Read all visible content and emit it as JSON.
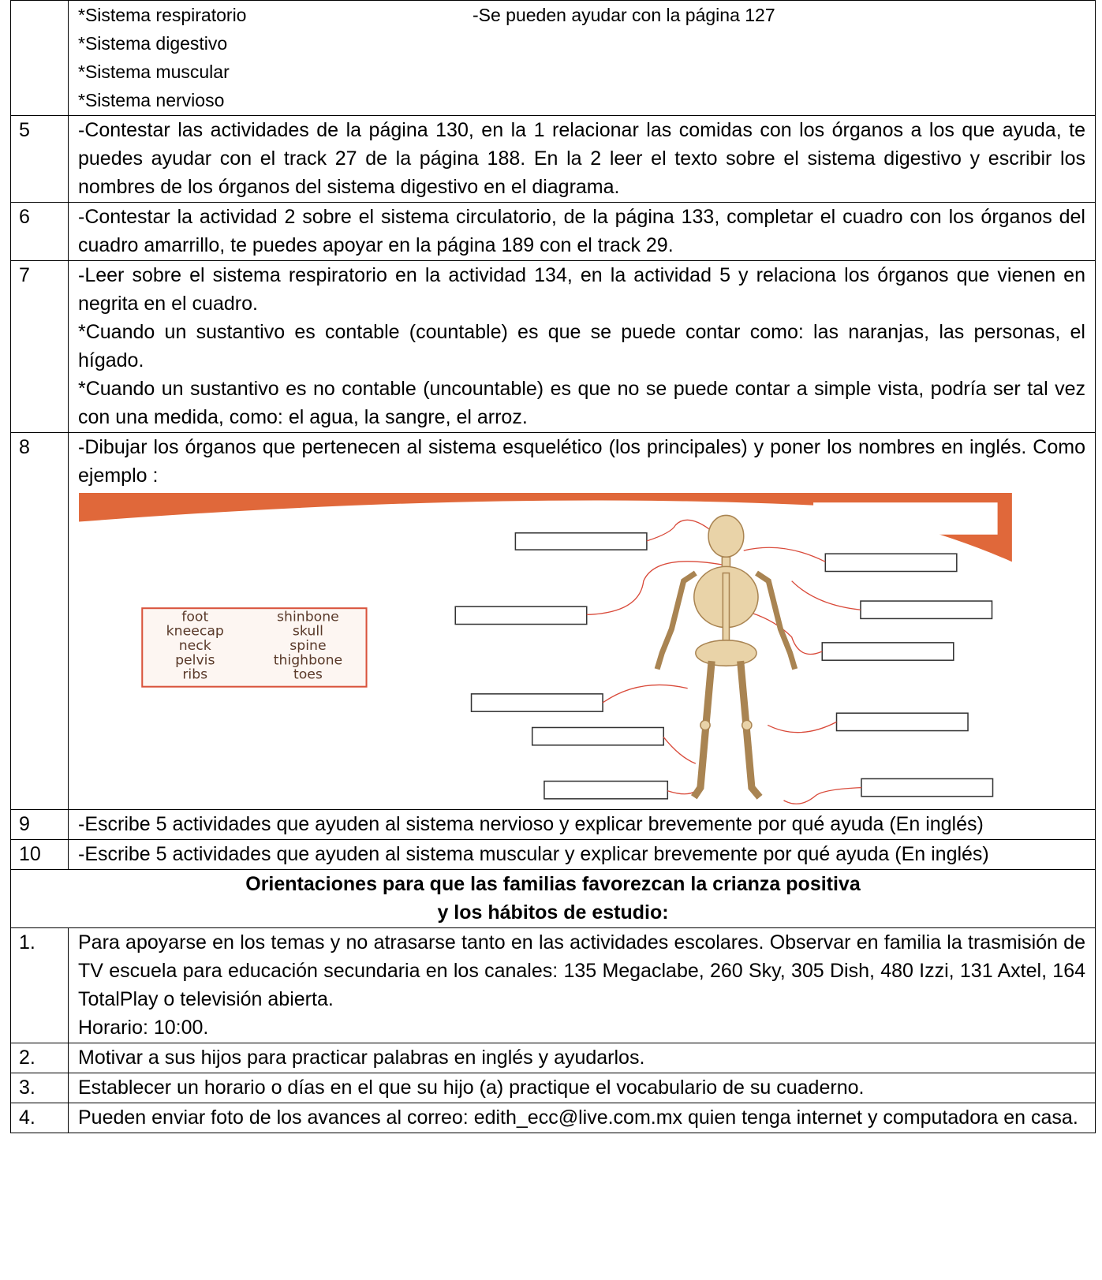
{
  "intro_row": {
    "items": [
      "*Sistema respiratorio",
      "*Sistema digestivo",
      "*Sistema muscular",
      "*Sistema nervioso"
    ],
    "note": "-Se pueden ayudar con la página 127"
  },
  "rows": [
    {
      "number": "5",
      "paragraphs": [
        "-Contestar las actividades de la página 130, en la 1 relacionar las comidas con los órganos a los que ayuda, te puedes ayudar con el track 27 de la página 188. En la 2 leer el texto sobre el sistema digestivo y escribir los nombres de los órganos del sistema digestivo en el diagrama."
      ]
    },
    {
      "number": "6",
      "paragraphs": [
        "-Contestar la actividad 2 sobre el sistema circulatorio, de la página 133, completar el cuadro con los órganos del cuadro amarrillo, te puedes apoyar en la página 189 con el track 29."
      ]
    },
    {
      "number": "7",
      "paragraphs": [
        "-Leer sobre el sistema respiratorio en la actividad 134, en la actividad 5 y relaciona los órganos que vienen en negrita en el cuadro.",
        "*Cuando un sustantivo es contable (countable) es que se puede contar como: las naranjas, las personas, el hígado.",
        "*Cuando un sustantivo es no contable (uncountable) es que no se puede contar a simple vista, podría ser tal vez con una medida, como: el agua, la sangre, el arroz."
      ]
    },
    {
      "number": "8",
      "paragraphs": [
        "-Dibujar los órganos que pertenecen al sistema esquelético (los principales) y poner los nombres en inglés. Como ejemplo :"
      ],
      "word_bank": [
        [
          "foot",
          "shinbone"
        ],
        [
          "kneecap",
          "skull"
        ],
        [
          "neck",
          "spine"
        ],
        [
          "pelvis",
          "thighbone"
        ],
        [
          "ribs",
          "toes"
        ]
      ]
    },
    {
      "number": "9",
      "paragraphs": [
        "-Escribe 5 actividades que ayuden al sistema nervioso y explicar brevemente por qué ayuda (En inglés)"
      ]
    },
    {
      "number": "10",
      "paragraphs": [
        "-Escribe 5 actividades que ayuden al sistema muscular y explicar brevemente por qué ayuda (En inglés)"
      ]
    }
  ],
  "section_heading": [
    "Orientaciones para que las familias favorezcan la crianza positiva",
    "y los hábitos de estudio:"
  ],
  "guidance_rows": [
    {
      "number": "1.",
      "paragraphs": [
        "Para apoyarse en los temas y no atrasarse tanto en las actividades escolares. Observar en familia la trasmisión de TV escuela para educación secundaria en los canales: 135 Megaclabe, 260 Sky, 305 Dish, 480 Izzi, 131 Axtel, 164 TotalPlay o televisión abierta.",
        "Horario: 10:00."
      ]
    },
    {
      "number": "2.",
      "paragraphs": [
        "Motivar a sus hijos para practicar palabras en inglés y ayudarlos."
      ]
    },
    {
      "number": "3.",
      "paragraphs": [
        "Establecer un horario o días en el que su hijo (a) practique el vocabulario de su cuaderno."
      ]
    },
    {
      "number": "4.",
      "paragraphs": [
        "Pueden enviar foto de los avances al correo: edith_ecc@live.com.mx quien tenga internet y computadora en casa."
      ]
    }
  ]
}
